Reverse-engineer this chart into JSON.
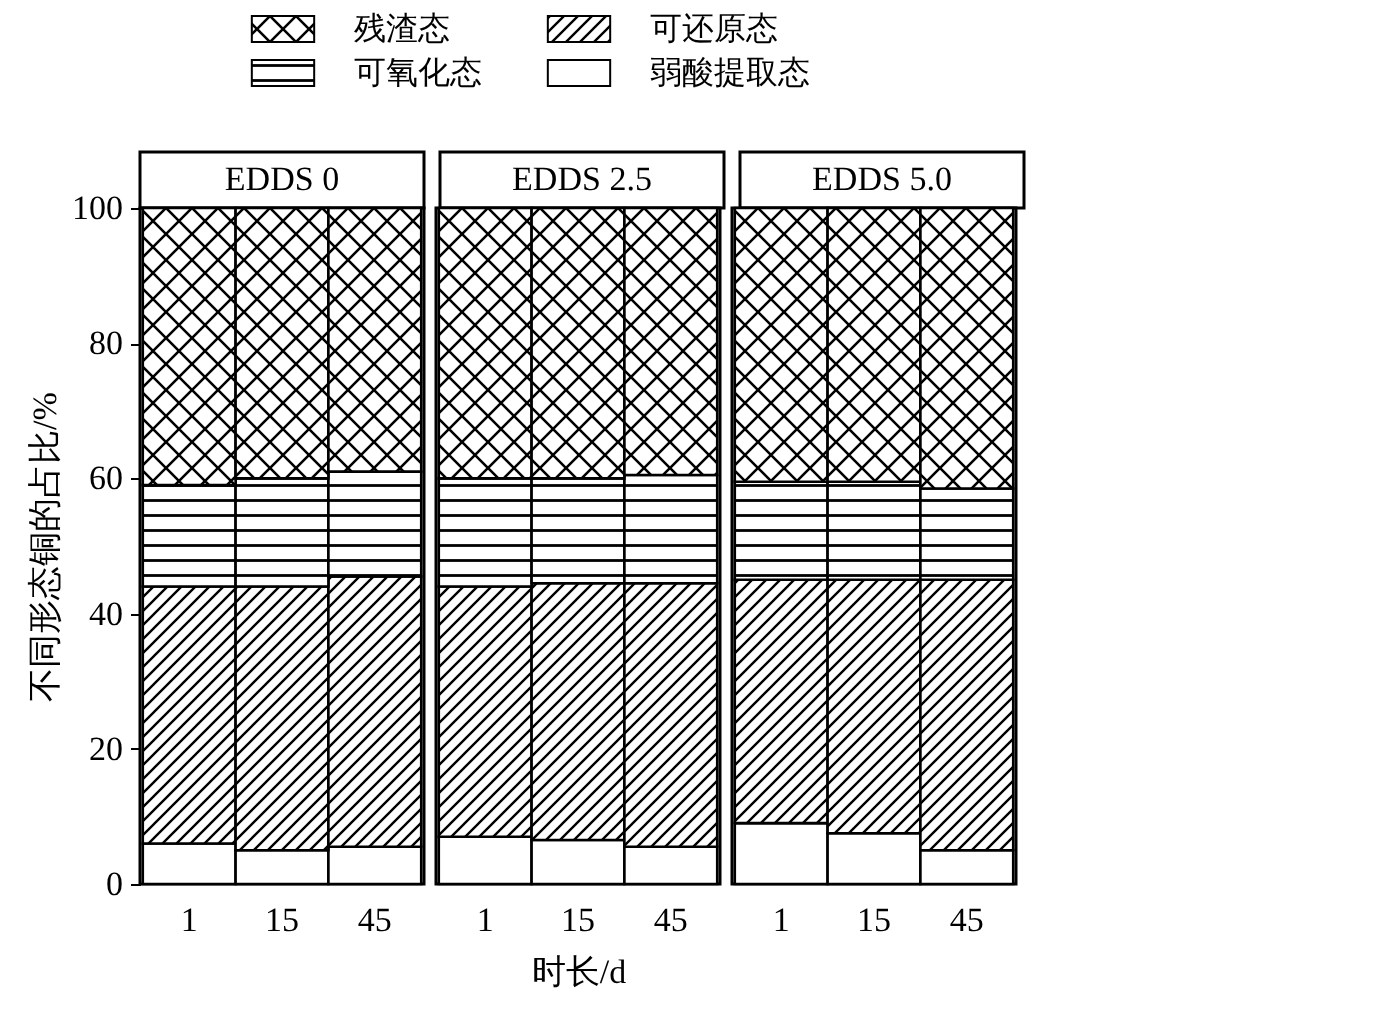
{
  "chart_data": [
    {
      "type": "bar",
      "stacked": true,
      "title": "EDDS 0",
      "ylabel": "不同形态铜的占比/%",
      "categories": [
        "1",
        "15",
        "45"
      ],
      "ylim": [
        0,
        100
      ],
      "yticks": [
        0,
        20,
        40,
        60,
        80,
        100
      ],
      "legend": "top",
      "series": [
        {
          "name": "弱酸提取态",
          "color": "#ffffff",
          "values": [
            6,
            5,
            5.5
          ]
        },
        {
          "name": "可还原态",
          "color": "#000000",
          "values": [
            38,
            39,
            40
          ]
        },
        {
          "name": "可氧化态",
          "color": "#000000",
          "values": [
            15,
            16,
            15.5
          ]
        },
        {
          "name": "残渣态",
          "color": "#000000",
          "values": [
            41,
            40,
            39
          ]
        }
      ]
    },
    {
      "type": "bar",
      "stacked": true,
      "title": "EDDS 2.5",
      "xlabel": "时长/d",
      "categories": [
        "1",
        "15",
        "45"
      ],
      "ylim": [
        0,
        100
      ],
      "yticks": [
        0,
        20,
        40,
        60,
        80,
        100
      ],
      "tick_labels": "x",
      "legend": "top",
      "series": [
        {
          "name": "弱酸提取态",
          "color": "#ffffff",
          "values": [
            7,
            6.5,
            5.5
          ]
        },
        {
          "name": "可还原态",
          "color": "#000000",
          "values": [
            37,
            38,
            39
          ]
        },
        {
          "name": "可氧化态",
          "color": "#000000",
          "values": [
            16,
            15.5,
            16
          ]
        },
        {
          "name": "残渣态",
          "color": "#000000",
          "values": [
            40,
            40,
            39.5
          ]
        }
      ]
    },
    {
      "type": "bar",
      "stacked": true,
      "title": "EDDS 5.0",
      "categories": [
        "1",
        "15",
        "45"
      ],
      "ylim": [
        0,
        100
      ],
      "yticks": [
        0,
        20,
        40,
        60,
        80,
        100
      ],
      "tick_labels": "x",
      "legend": "top",
      "series": [
        {
          "name": "弱酸提取态",
          "color": "#ffffff",
          "values": [
            9,
            7.5,
            5
          ]
        },
        {
          "name": "可还原态",
          "color": "#000000",
          "values": [
            36,
            37.5,
            40
          ]
        },
        {
          "name": "可氧化态",
          "color": "#000000",
          "values": [
            14.5,
            14.5,
            13.5
          ]
        },
        {
          "name": "残渣态",
          "color": "#000000",
          "values": [
            40.5,
            40.5,
            41.5
          ]
        }
      ]
    }
  ]
}
